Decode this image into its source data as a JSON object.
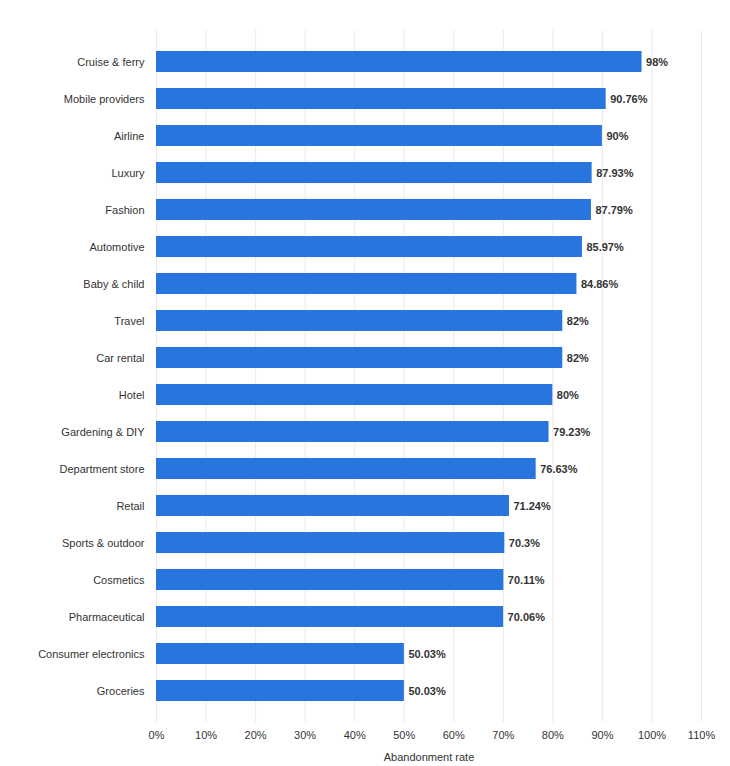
{
  "chart_data": {
    "type": "bar",
    "orientation": "horizontal",
    "categories": [
      "Cruise & ferry",
      "Mobile providers",
      "Airline",
      "Luxury",
      "Fashion",
      "Automotive",
      "Baby & child",
      "Travel",
      "Car rental",
      "Hotel",
      "Gardening & DIY",
      "Department store",
      "Retail",
      "Sports & outdoor",
      "Cosmetics",
      "Pharmaceutical",
      "Consumer electronics",
      "Groceries"
    ],
    "values": [
      98,
      90.76,
      90,
      87.93,
      87.79,
      85.97,
      84.86,
      82,
      82,
      80,
      79.23,
      76.63,
      71.24,
      70.3,
      70.11,
      70.06,
      50.03,
      50.03
    ],
    "value_labels": [
      "98%",
      "90.76%",
      "90%",
      "87.93%",
      "87.79%",
      "85.97%",
      "84.86%",
      "82%",
      "82%",
      "80%",
      "79.23%",
      "76.63%",
      "71.24%",
      "70.3%",
      "70.11%",
      "70.06%",
      "50.03%",
      "50.03%"
    ],
    "data_labels": true,
    "color": "#2876dd",
    "x_label": "Abandonment rate",
    "xlim": [
      0,
      110
    ],
    "xticks": [
      {
        "value": 0,
        "label": "0%"
      },
      {
        "value": 10,
        "label": "10%"
      },
      {
        "value": 20,
        "label": "20%"
      },
      {
        "value": 30,
        "label": "30%"
      },
      {
        "value": 40,
        "label": "40%"
      },
      {
        "value": 50,
        "label": "50%"
      },
      {
        "value": 60,
        "label": "60%"
      },
      {
        "value": 70,
        "label": "70%"
      },
      {
        "value": 80,
        "label": "80%"
      },
      {
        "value": 90,
        "label": "90%"
      },
      {
        "value": 100,
        "label": "100%"
      },
      {
        "value": 110,
        "label": "110%"
      }
    ],
    "grid": true
  }
}
